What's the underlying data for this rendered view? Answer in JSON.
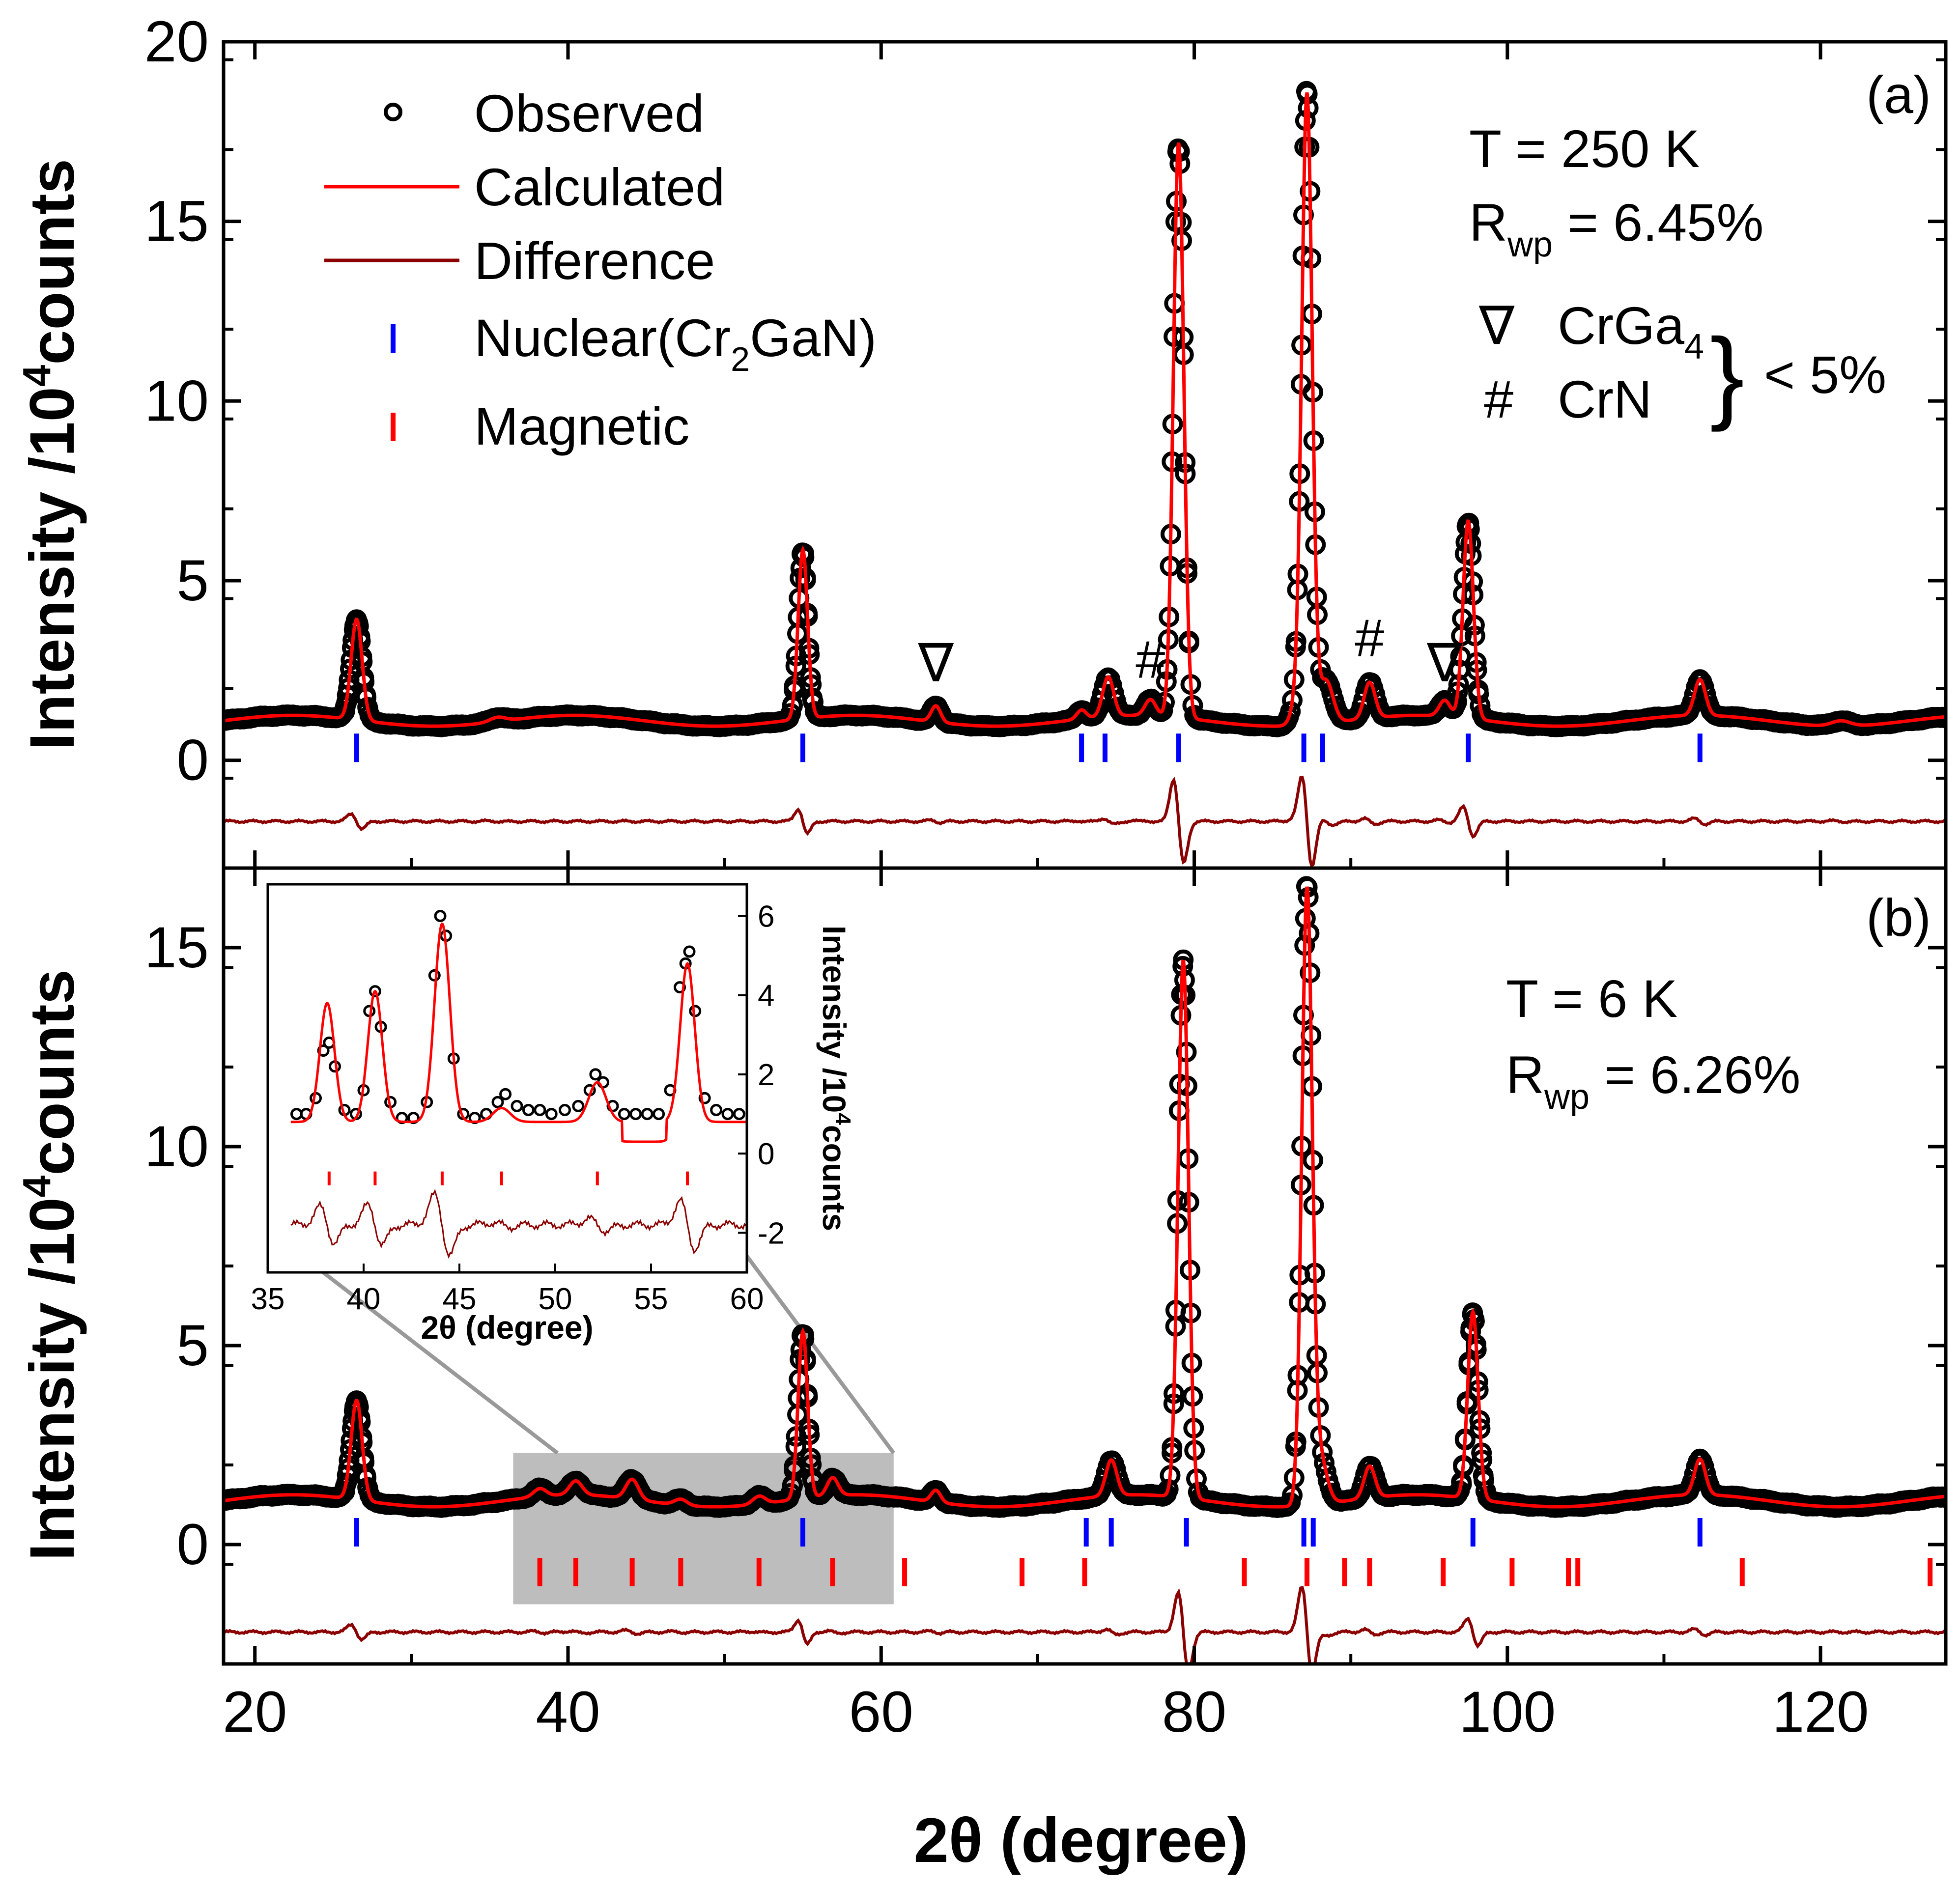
{
  "chart_data": [
    {
      "panel": "(a)",
      "type": "line",
      "xlabel": "2θ (degree)",
      "ylabel": "Intensity /10^4 counts",
      "ylabel_base": "Intensity /10",
      "ylabel_exp": "4",
      "ylabel_unit": "counts",
      "xlim": [
        18,
        128
      ],
      "ylim": [
        -3,
        20
      ],
      "xticks": [
        20,
        40,
        60,
        80,
        100,
        120
      ],
      "yticks": [
        0,
        5,
        10,
        15,
        20
      ],
      "temperature": "T = 250 K",
      "rwp_prefix": "R",
      "rwp_sub": "wp",
      "rwp_value": " = 6.45%",
      "background": 1.1,
      "difference_offset": -1.7,
      "peaks": [
        {
          "x": 26.5,
          "h": 2.8,
          "w": 0.35
        },
        {
          "x": 35.5,
          "h": 0.12,
          "w": 0.5
        },
        {
          "x": 55.0,
          "h": 4.7,
          "w": 0.3
        },
        {
          "x": 63.5,
          "h": 0.45,
          "w": 0.3
        },
        {
          "x": 72.8,
          "h": 0.25,
          "w": 0.3
        },
        {
          "x": 74.5,
          "h": 1.1,
          "w": 0.35
        },
        {
          "x": 77.2,
          "h": 0.45,
          "w": 0.35
        },
        {
          "x": 79.0,
          "h": 16.0,
          "w": 0.33
        },
        {
          "x": 86.5,
          "h": 0.5,
          "w": 0.35
        },
        {
          "x": 87.2,
          "h": 17.5,
          "w": 0.33
        },
        {
          "x": 88.4,
          "h": 1.2,
          "w": 0.45
        },
        {
          "x": 91.2,
          "h": 1.0,
          "w": 0.35
        },
        {
          "x": 96.0,
          "h": 0.45,
          "w": 0.35
        },
        {
          "x": 97.5,
          "h": 5.5,
          "w": 0.33
        },
        {
          "x": 112.3,
          "h": 1.0,
          "w": 0.35
        },
        {
          "x": 121.3,
          "h": 0.15,
          "w": 0.6
        }
      ],
      "nuclear_ticks": [
        26.5,
        55.0,
        72.8,
        74.3,
        79.0,
        87.0,
        88.2,
        97.5,
        112.3
      ],
      "magnetic_ticks": [],
      "impurity_markers": [
        {
          "symbol": "∇",
          "x": 63.5,
          "y": 2.2
        },
        {
          "symbol": "#",
          "x": 77.2,
          "y": 2.3
        },
        {
          "symbol": "#",
          "x": 91.2,
          "y": 2.9
        },
        {
          "symbol": "∇",
          "x": 96.0,
          "y": 2.2
        }
      ]
    },
    {
      "panel": "(b)",
      "type": "line",
      "xlabel": "2θ (degree)",
      "ylabel": "Intensity /10^4 counts",
      "ylabel_base": "Intensity /10",
      "ylabel_exp": "4",
      "ylabel_unit": "counts",
      "xlim": [
        18,
        128
      ],
      "ylim": [
        -3,
        17
      ],
      "xticks": [
        20,
        40,
        60,
        80,
        100,
        120
      ],
      "yticks": [
        0,
        5,
        10,
        15
      ],
      "temperature": "T = 6 K",
      "rwp_prefix": "R",
      "rwp_sub": "wp",
      "rwp_value": " = 6.26%",
      "background": 1.1,
      "difference_offset": -2.2,
      "peaks": [
        {
          "x": 26.5,
          "h": 2.5,
          "w": 0.35
        },
        {
          "x": 38.2,
          "h": 0.2,
          "w": 0.4
        },
        {
          "x": 40.5,
          "h": 0.35,
          "w": 0.4
        },
        {
          "x": 44.1,
          "h": 0.5,
          "w": 0.4
        },
        {
          "x": 47.2,
          "h": 0.15,
          "w": 0.4
        },
        {
          "x": 52.2,
          "h": 0.2,
          "w": 0.4
        },
        {
          "x": 55.0,
          "h": 4.2,
          "w": 0.3
        },
        {
          "x": 56.9,
          "h": 0.45,
          "w": 0.35
        },
        {
          "x": 63.5,
          "h": 0.3,
          "w": 0.3
        },
        {
          "x": 74.7,
          "h": 0.9,
          "w": 0.35
        },
        {
          "x": 79.3,
          "h": 13.5,
          "w": 0.33
        },
        {
          "x": 87.2,
          "h": 15.3,
          "w": 0.33
        },
        {
          "x": 88.0,
          "h": 1.2,
          "w": 0.45
        },
        {
          "x": 91.2,
          "h": 0.8,
          "w": 0.35
        },
        {
          "x": 97.8,
          "h": 4.7,
          "w": 0.33
        },
        {
          "x": 112.3,
          "h": 0.9,
          "w": 0.35
        }
      ],
      "nuclear_ticks": [
        26.5,
        55.0,
        73.1,
        74.7,
        79.5,
        87.0,
        87.6,
        97.8,
        112.3
      ],
      "magnetic_ticks": [
        38.2,
        40.5,
        44.1,
        47.2,
        52.2,
        56.9,
        61.5,
        69.0,
        73.0,
        83.2,
        87.2,
        89.6,
        91.2,
        95.9,
        100.3,
        103.9,
        104.5,
        115.0,
        127.0
      ],
      "highlight_region": {
        "x": [
          36.5,
          60.8
        ],
        "y": [
          -1.5,
          2.3
        ]
      }
    },
    {
      "panel": "inset",
      "type": "line",
      "xlabel": "2θ (degree)",
      "ylabel": "Intensity /10^4 counts",
      "ylabel_base": "Intensity /10",
      "ylabel_exp": "4",
      "ylabel_unit": "counts",
      "xlim": [
        35,
        60
      ],
      "ylim": [
        -3,
        6.8
      ],
      "xticks": [
        35,
        40,
        45,
        50,
        55,
        60
      ],
      "yticks": [
        -2,
        0,
        2,
        4,
        6
      ],
      "observed_points": [
        {
          "x": 36.5,
          "y": 1.0
        },
        {
          "x": 37.0,
          "y": 1.0
        },
        {
          "x": 37.5,
          "y": 1.4
        },
        {
          "x": 37.9,
          "y": 2.6
        },
        {
          "x": 38.2,
          "y": 2.8
        },
        {
          "x": 38.5,
          "y": 2.2
        },
        {
          "x": 39.0,
          "y": 1.1
        },
        {
          "x": 39.6,
          "y": 1.0
        },
        {
          "x": 40.0,
          "y": 1.6
        },
        {
          "x": 40.3,
          "y": 3.6
        },
        {
          "x": 40.6,
          "y": 4.1
        },
        {
          "x": 40.9,
          "y": 3.2
        },
        {
          "x": 41.4,
          "y": 1.3
        },
        {
          "x": 42.0,
          "y": 0.9
        },
        {
          "x": 42.6,
          "y": 0.9
        },
        {
          "x": 43.3,
          "y": 1.3
        },
        {
          "x": 43.7,
          "y": 4.5
        },
        {
          "x": 44.0,
          "y": 6.0
        },
        {
          "x": 44.3,
          "y": 5.5
        },
        {
          "x": 44.7,
          "y": 2.4
        },
        {
          "x": 45.2,
          "y": 1.0
        },
        {
          "x": 45.8,
          "y": 0.9
        },
        {
          "x": 46.4,
          "y": 1.0
        },
        {
          "x": 47.0,
          "y": 1.3
        },
        {
          "x": 47.4,
          "y": 1.5
        },
        {
          "x": 48.0,
          "y": 1.2
        },
        {
          "x": 48.6,
          "y": 1.1
        },
        {
          "x": 49.2,
          "y": 1.1
        },
        {
          "x": 49.8,
          "y": 1.0
        },
        {
          "x": 50.5,
          "y": 1.1
        },
        {
          "x": 51.2,
          "y": 1.2
        },
        {
          "x": 51.8,
          "y": 1.6
        },
        {
          "x": 52.1,
          "y": 2.0
        },
        {
          "x": 52.5,
          "y": 1.8
        },
        {
          "x": 53.0,
          "y": 1.2
        },
        {
          "x": 53.6,
          "y": 1.0
        },
        {
          "x": 54.2,
          "y": 1.0
        },
        {
          "x": 54.8,
          "y": 1.0
        },
        {
          "x": 55.4,
          "y": 1.0
        },
        {
          "x": 56.0,
          "y": 1.6
        },
        {
          "x": 56.5,
          "y": 4.2
        },
        {
          "x": 56.8,
          "y": 4.8
        },
        {
          "x": 57.0,
          "y": 5.1
        },
        {
          "x": 57.3,
          "y": 3.6
        },
        {
          "x": 57.8,
          "y": 1.4
        },
        {
          "x": 58.4,
          "y": 1.1
        },
        {
          "x": 59.0,
          "y": 1.0
        },
        {
          "x": 59.6,
          "y": 1.0
        }
      ],
      "calculated_peaks": [
        {
          "x": 38.1,
          "h": 3.0,
          "w": 0.38
        },
        {
          "x": 40.6,
          "h": 3.3,
          "w": 0.38
        },
        {
          "x": 44.1,
          "h": 5.0,
          "w": 0.4
        },
        {
          "x": 47.2,
          "h": 0.35,
          "w": 0.45
        },
        {
          "x": 52.2,
          "h": 1.0,
          "w": 0.45
        },
        {
          "x": 56.9,
          "h": 4.0,
          "w": 0.38
        }
      ],
      "calc_background": 0.8,
      "magnetic_ticks": [
        38.2,
        40.6,
        44.1,
        47.2,
        52.2,
        56.9
      ],
      "difference_offset": -1.8
    }
  ],
  "legend": {
    "observed": "Observed",
    "calculated": "Calculated",
    "difference": "Difference",
    "nuclear_prefix": "Nuclear(Cr",
    "nuclear_sub": "2",
    "nuclear_suffix": "GaN)",
    "magnetic": "Magnetic"
  },
  "impurities": {
    "crga4_symbol": "∇",
    "crga4_label": "CrGa",
    "crga4_sub": "4",
    "crn_symbol": "#",
    "crn_label": "CrN",
    "brace": "}",
    "fraction": "< 5%"
  },
  "colors": {
    "observed": "#000000",
    "calculated": "#ff0000",
    "difference": "#8b0000",
    "nuclear_tick": "#0000ff",
    "magnetic_tick": "#ff0000",
    "highlight": "#999999"
  }
}
